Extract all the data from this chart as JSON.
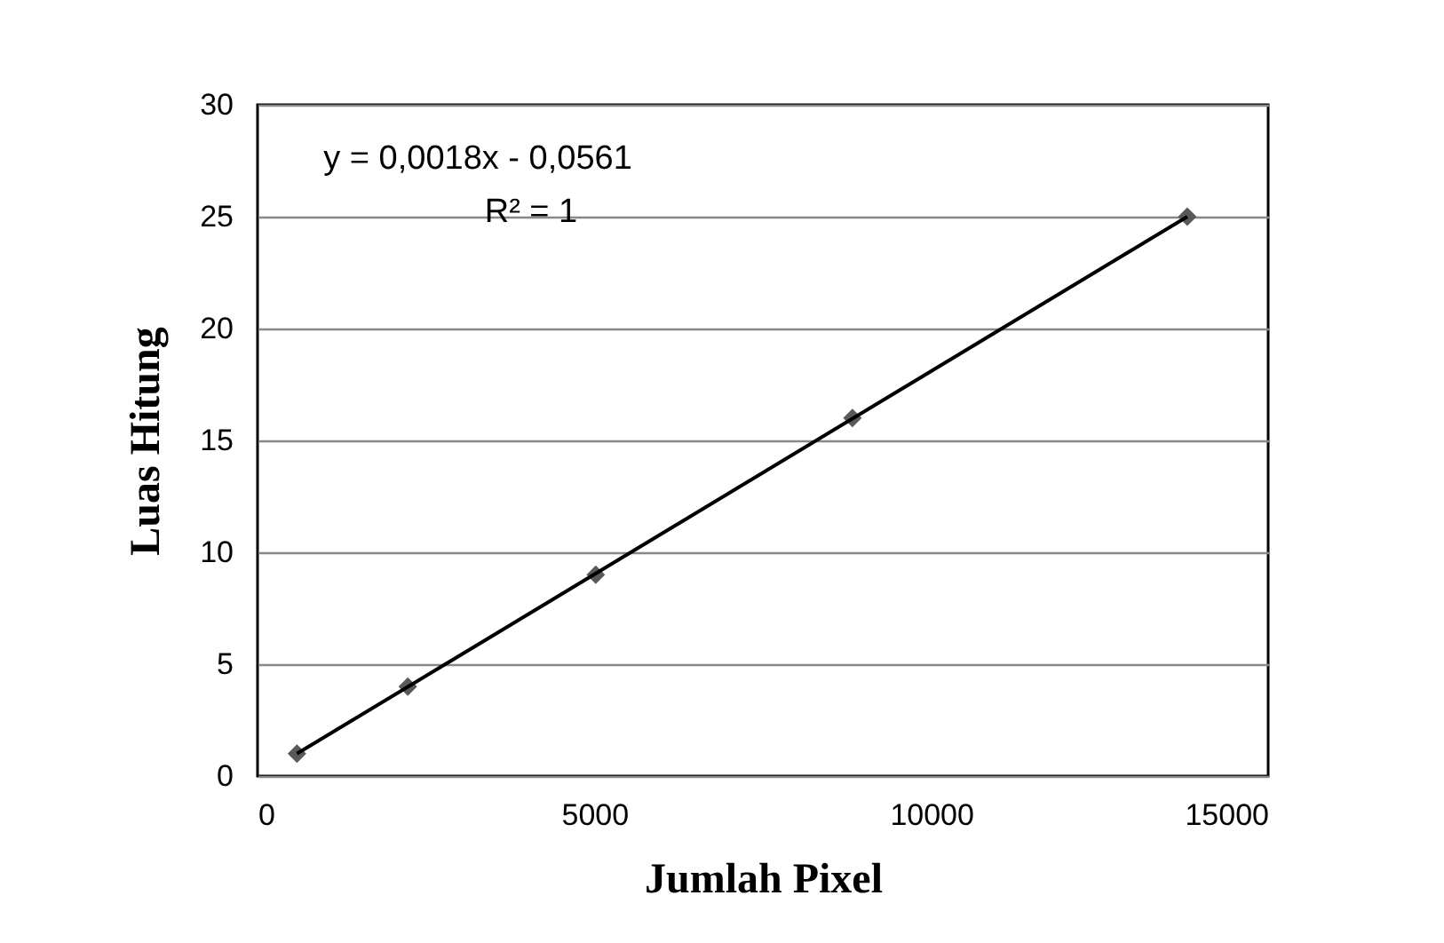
{
  "chart_data": {
    "type": "scatter",
    "xlabel": "Jumlah Pixel",
    "ylabel": "Luas Hitung",
    "annotations": [
      "y = 0,0018x - 0,0561",
      "R² = 1"
    ],
    "series": [
      {
        "color": "#595959",
        "x": [
          585,
          2230,
          5020,
          8830,
          13800
        ],
        "values": [
          1,
          4,
          9,
          16,
          25
        ],
        "marker": "diamond"
      },
      {
        "type": "line",
        "color": "#000000",
        "x": [
          585,
          13800
        ],
        "values": [
          1,
          25
        ],
        "marker": "none"
      }
    ],
    "xlim": [
      0,
      15000
    ],
    "xticks": [
      0,
      5000,
      10000,
      15000
    ],
    "ylim": [
      0,
      30
    ],
    "yticks": [
      0,
      5,
      10,
      15,
      20,
      25,
      30
    ],
    "grid": "y"
  }
}
